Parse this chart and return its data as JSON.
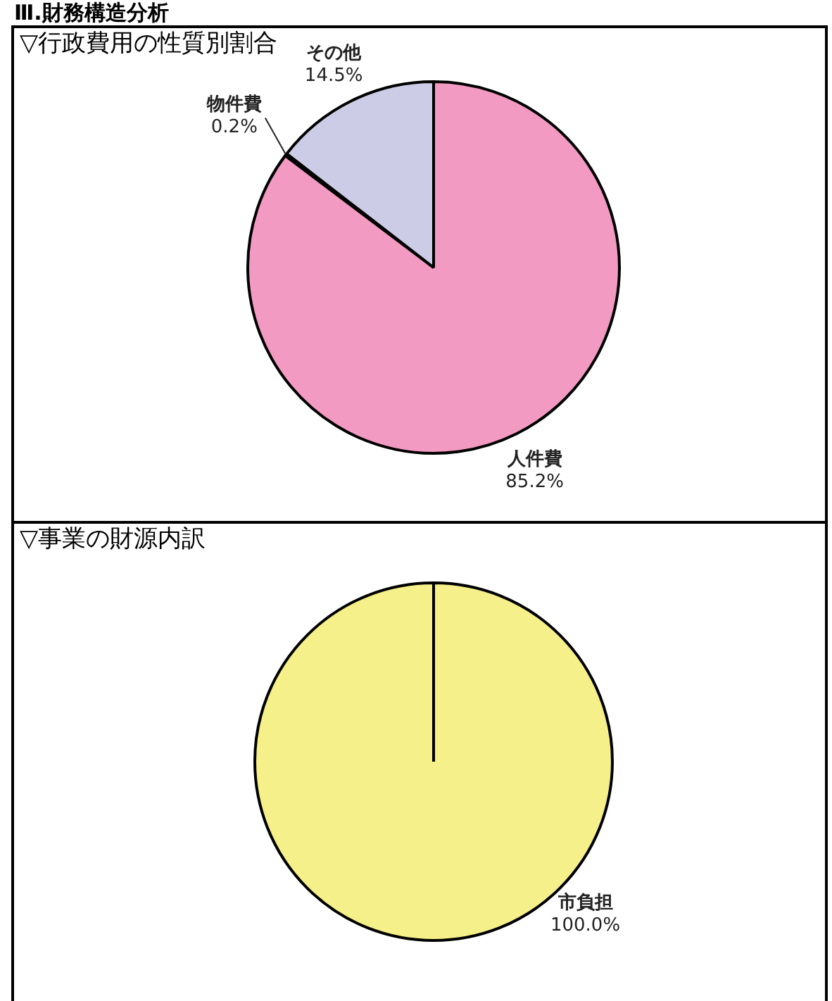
{
  "chart_data": [
    {
      "type": "pie",
      "title": "▽行政費用の性質別割合",
      "annotations": [
        "Ⅲ.財務構造分析"
      ],
      "categories": [
        "人件費",
        "物件費",
        "その他"
      ],
      "values": [
        85.2,
        0.2,
        14.5
      ],
      "colors": [
        "#f39ac3",
        "#e27aa8",
        "#cccce6"
      ],
      "value_labels": [
        "85.2%",
        "0.2%",
        "14.5%"
      ]
    },
    {
      "type": "pie",
      "title": "▽事業の財源内訳",
      "categories": [
        "市負担"
      ],
      "values": [
        100.0
      ],
      "colors": [
        "#f5f08a"
      ],
      "value_labels": [
        "100.0%"
      ]
    }
  ]
}
